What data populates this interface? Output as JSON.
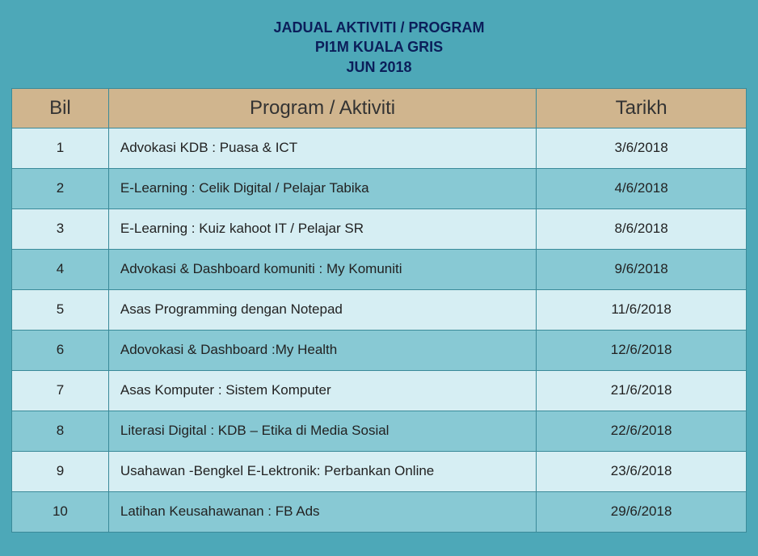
{
  "title": {
    "line1": "JADUAL AKTIVITI / PROGRAM",
    "line2": "PI1M KUALA GRIS",
    "line3": "JUN 2018",
    "color": "#0b1e5a",
    "fontsize": 18
  },
  "table": {
    "columns": [
      "Bil",
      "Program / Aktiviti",
      "Tarikh"
    ],
    "header_bg": "#d0b58e",
    "header_fontsize": 24,
    "row_odd_bg": "#d6eef3",
    "row_even_bg": "#88c9d4",
    "border_color": "#3a8a99",
    "rows": [
      {
        "bil": "1",
        "program": "Advokasi KDB : Puasa & ICT",
        "tarikh": "3/6/2018"
      },
      {
        "bil": "2",
        "program": "E-Learning : Celik Digital / Pelajar Tabika",
        "tarikh": "4/6/2018"
      },
      {
        "bil": "3",
        "program": "E-Learning : Kuiz kahoot IT / Pelajar SR",
        "tarikh": "8/6/2018"
      },
      {
        "bil": "4",
        "program": "Advokasi & Dashboard komuniti : My Komuniti",
        "tarikh": "9/6/2018"
      },
      {
        "bil": "5",
        "program": "Asas Programming  dengan Notepad",
        "tarikh": "11/6/2018"
      },
      {
        "bil": "6",
        "program": "Adovokasi & Dashboard :My Health",
        "tarikh": "12/6/2018"
      },
      {
        "bil": "7",
        "program": "Asas Komputer : Sistem Komputer",
        "tarikh": "21/6/2018"
      },
      {
        "bil": "8",
        "program": "Literasi Digital : KDB – Etika di Media Sosial",
        "tarikh": "22/6/2018"
      },
      {
        "bil": "9",
        "program": "Usahawan -Bengkel E-Lektronik: Perbankan Online",
        "tarikh": "23/6/2018"
      },
      {
        "bil": "10",
        "program": "Latihan Keusahawanan : FB Ads",
        "tarikh": "29/6/2018"
      }
    ]
  },
  "background_color": "#4da8b8"
}
